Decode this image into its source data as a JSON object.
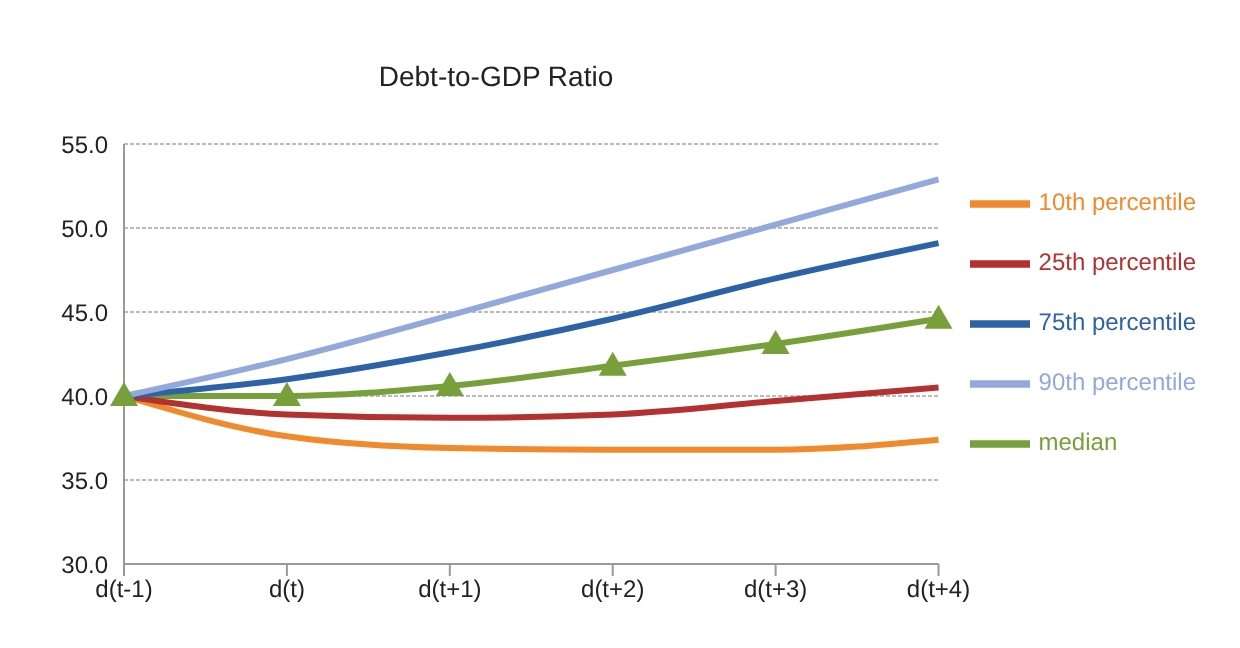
{
  "chart_data": {
    "type": "line",
    "title": "Debt-to-GDP Ratio",
    "categories": [
      "d(t-1)",
      "d(t)",
      "d(t+1)",
      "d(t+2)",
      "d(t+3)",
      "d(t+4)"
    ],
    "series": [
      {
        "name": "median",
        "color": "#77a03a",
        "marker": "triangle",
        "values": [
          40.0,
          40.0,
          40.6,
          41.8,
          43.1,
          44.6
        ]
      },
      {
        "name": "10th percentile",
        "color": "#f08a2c",
        "values": [
          40.0,
          37.6,
          36.9,
          36.8,
          36.8,
          37.4
        ]
      },
      {
        "name": "25th percentile",
        "color": "#b3312f",
        "values": [
          40.0,
          38.9,
          38.7,
          38.9,
          39.7,
          40.5
        ]
      },
      {
        "name": "75th percentile",
        "color": "#2e62a6",
        "values": [
          40.0,
          41.0,
          42.6,
          44.6,
          47.0,
          49.1
        ]
      },
      {
        "name": "90th percentile",
        "color": "#93a9db",
        "values": [
          40.0,
          42.2,
          44.8,
          47.5,
          50.2,
          52.9
        ]
      }
    ],
    "ylim": [
      30,
      55
    ],
    "yticks": [
      {
        "value": 30,
        "label": "30.0"
      },
      {
        "value": 35,
        "label": "35.0"
      },
      {
        "value": 40,
        "label": "40.0"
      },
      {
        "value": 45,
        "label": "45.0"
      },
      {
        "value": 50,
        "label": "50.0"
      },
      {
        "value": 55,
        "label": "55.0"
      }
    ],
    "grid": "y",
    "legend": "right",
    "marker": "none",
    "line_style": "solid"
  }
}
